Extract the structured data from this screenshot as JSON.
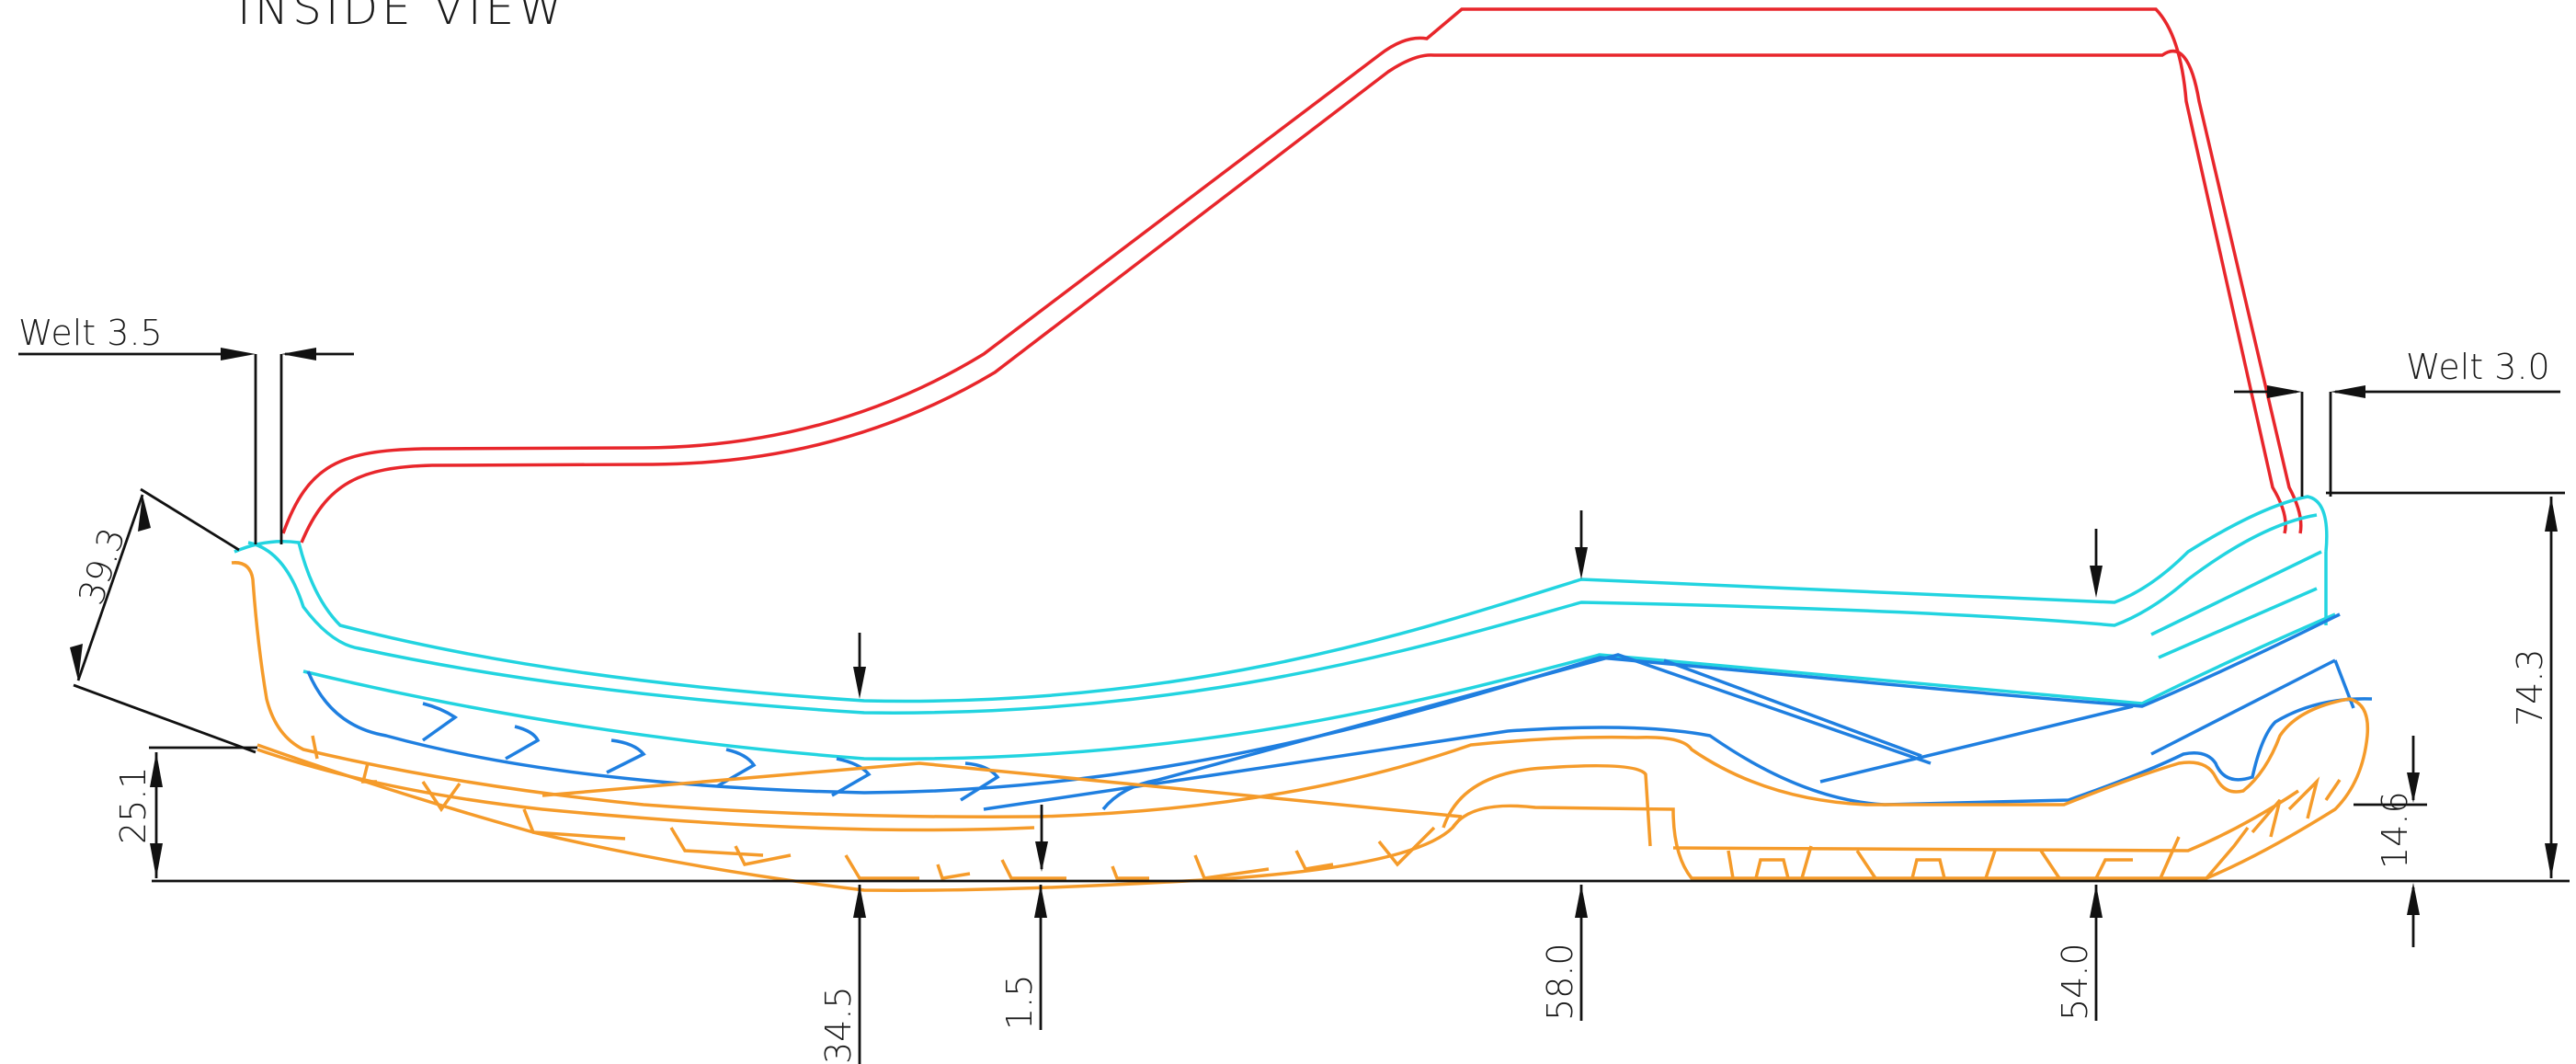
{
  "title": "INSIDE VIEW",
  "dimensions": {
    "welt_left": "Welt 3.5",
    "welt_right": "Welt 3.0",
    "toe_thickness": "39.3",
    "toe_height": "25.1",
    "forefoot": "34.5",
    "sole_gap": "1.5",
    "waist": "58.0",
    "heel": "54.0",
    "heel_lift": "14.6",
    "total_height": "74.3"
  },
  "colors": {
    "upper": "#e8262b",
    "insole": "#22d4e0",
    "midsole": "#1f7fe0",
    "outsole": "#f59b2a",
    "dimension": "#111111"
  }
}
